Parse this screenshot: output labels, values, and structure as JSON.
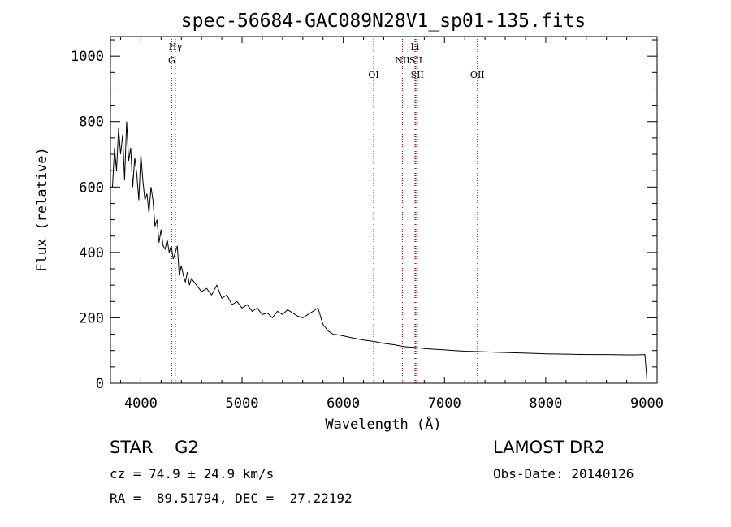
{
  "chart_data": {
    "type": "line",
    "title": "spec-56684-GAC089N28V1_sp01-135.fits",
    "xlabel": "Wavelength (Å)",
    "ylabel": "Flux (relative)",
    "xlim": [
      3700,
      9100
    ],
    "ylim": [
      0,
      1060
    ],
    "xticks": [
      4000,
      5000,
      6000,
      7000,
      8000,
      9000
    ],
    "yticks": [
      0,
      200,
      400,
      600,
      800,
      1000
    ],
    "grid": false,
    "series": [
      {
        "x": [
          3720,
          3740,
          3760,
          3780,
          3800,
          3820,
          3840,
          3860,
          3880,
          3900,
          3920,
          3940,
          3960,
          3980,
          4000,
          4020,
          4040,
          4060,
          4080,
          4100,
          4120,
          4140,
          4160,
          4180,
          4200,
          4220,
          4240,
          4260,
          4280,
          4300,
          4320,
          4340,
          4360,
          4380,
          4400,
          4420,
          4440,
          4460,
          4480,
          4500,
          4550,
          4600,
          4650,
          4700,
          4750,
          4800,
          4850,
          4900,
          4950,
          5000,
          5050,
          5100,
          5150,
          5200,
          5250,
          5300,
          5350,
          5400,
          5450,
          5500,
          5550,
          5600,
          5650,
          5700,
          5750,
          5800,
          5850,
          5900,
          5950,
          6000,
          6100,
          6200,
          6300,
          6400,
          6500,
          6600,
          6700,
          6800,
          6900,
          7000,
          7100,
          7200,
          7300,
          7400,
          7500,
          7600,
          7700,
          7800,
          7900,
          8000,
          8200,
          8400,
          8600,
          8800,
          8900,
          8980,
          9000
        ],
        "y": [
          600,
          720,
          650,
          780,
          700,
          760,
          620,
          800,
          680,
          720,
          600,
          690,
          640,
          560,
          700,
          620,
          560,
          580,
          520,
          600,
          560,
          480,
          500,
          430,
          470,
          420,
          410,
          440,
          400,
          420,
          380,
          400,
          420,
          330,
          360,
          330,
          310,
          340,
          300,
          320,
          300,
          280,
          290,
          270,
          300,
          260,
          270,
          240,
          250,
          230,
          240,
          220,
          230,
          210,
          215,
          200,
          220,
          210,
          225,
          215,
          205,
          200,
          210,
          220,
          230,
          180,
          160,
          150,
          148,
          145,
          138,
          132,
          128,
          122,
          118,
          112,
          110,
          106,
          104,
          102,
          100,
          98,
          97,
          96,
          95,
          94,
          93,
          92,
          91,
          90,
          89,
          88,
          88,
          87,
          87,
          88,
          10
        ]
      }
    ],
    "spectral_lines": [
      {
        "wave": 4305,
        "label": "G",
        "row": 2
      },
      {
        "wave": 4341,
        "label": "Hγ",
        "row": 1
      },
      {
        "wave": 6300,
        "label": "OI",
        "row": 3
      },
      {
        "wave": 6584,
        "label": "NII",
        "row": 2
      },
      {
        "wave": 6708,
        "label": "Li",
        "row": 1
      },
      {
        "wave": 6717,
        "label": "SII",
        "row": 2
      },
      {
        "wave": 6731,
        "label": "SII",
        "row": 3
      },
      {
        "wave": 7325,
        "label": "OII",
        "row": 3
      }
    ]
  },
  "info": {
    "class_line": "STAR    G2",
    "survey": "LAMOST DR2",
    "cz": "cz = 74.9 ± 24.9 km/s",
    "obs_date": "Obs-Date: 20140126",
    "radec": "RA =  89.51794, DEC =  27.22192"
  },
  "colors": {
    "spectrum": "#000000",
    "line_marker": "#990000",
    "axis": "#000000"
  }
}
